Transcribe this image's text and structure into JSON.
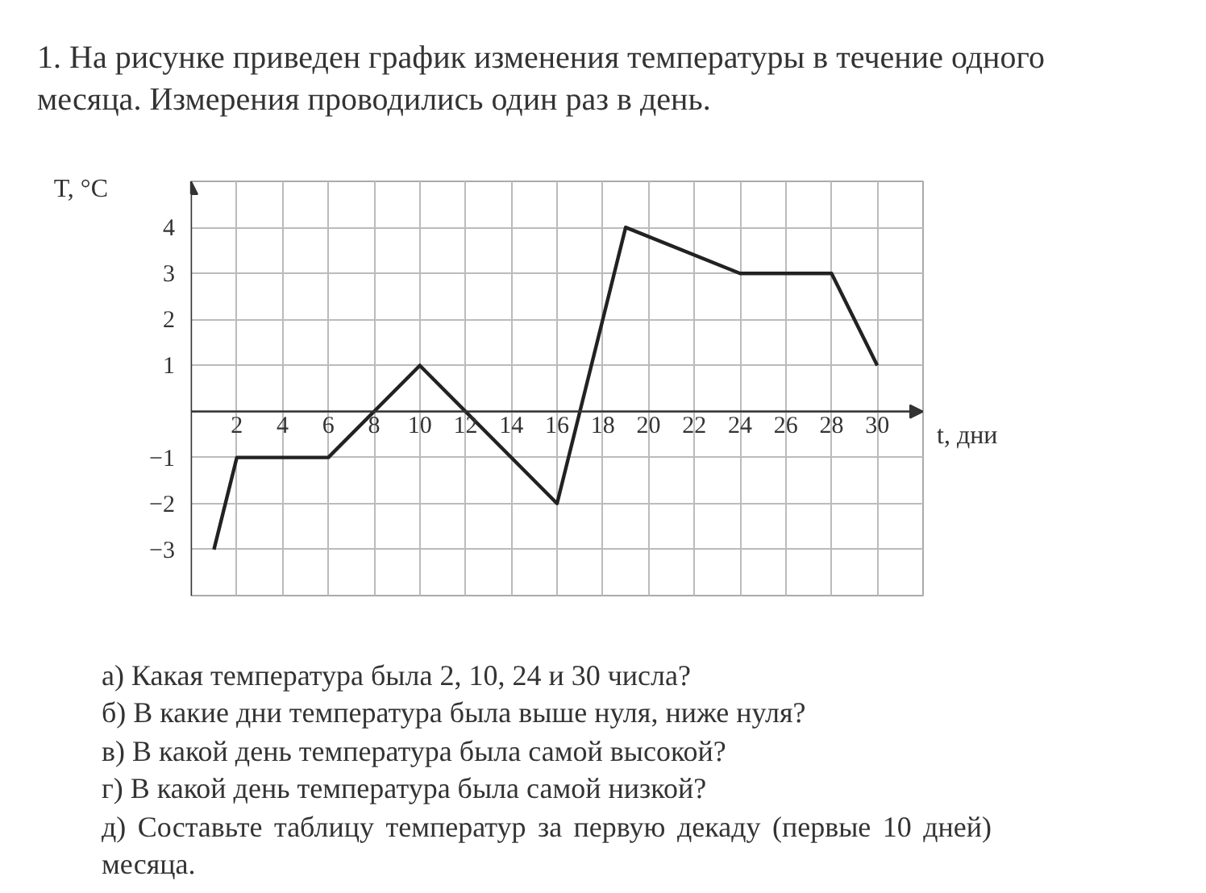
{
  "chart_data": {
    "type": "line",
    "title": "1. На рисунке приведен график изменения температуры в течение одного месяца. Измерения проводились один раз в день.",
    "xlabel": "t, дни",
    "ylabel": "T, °C",
    "x": [
      1,
      2,
      6,
      10,
      16,
      19,
      24,
      28,
      30
    ],
    "values": [
      -3,
      -1,
      -1,
      1,
      -2,
      4,
      3,
      3,
      1
    ],
    "color": "#222222",
    "xlim": [
      0,
      32
    ],
    "ylim": [
      -4,
      5
    ],
    "xticks": [
      2,
      4,
      6,
      8,
      10,
      12,
      14,
      16,
      18,
      20,
      22,
      24,
      26,
      28,
      30
    ],
    "yticks": [
      -3,
      -2,
      -1,
      {
        "value": 0,
        "label": null
      },
      1,
      2,
      3,
      4
    ],
    "grid": true,
    "marker": "none",
    "line_style": "solid",
    "annotations": [
      "а) Какая температура была 2, 10, 24 и 30 числа?",
      "б) В какие дни температура была выше нуля, ниже нуля?",
      "в) В какой день температура была самой высокой?",
      "г) В какой день температура была самой низкой?",
      "д) Составьте таблицу температур за первую декаду (первые 10 дней) месяца."
    ]
  }
}
